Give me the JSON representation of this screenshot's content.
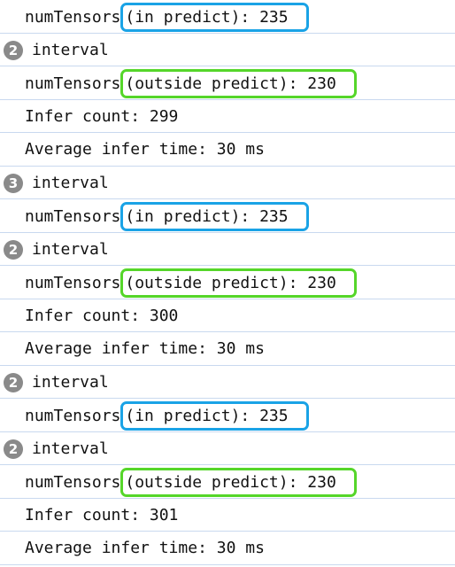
{
  "colors": {
    "in_predict_border": "#1aa3e6",
    "outside_predict_border": "#55d62a",
    "badge_bg": "#8a8a8a"
  },
  "lines": [
    {
      "kind": "tensor",
      "prefix": "numTensors",
      "boxed": "(in predict): 235",
      "highlight": "in_predict"
    },
    {
      "kind": "group",
      "count": "2",
      "text": "interval"
    },
    {
      "kind": "tensor",
      "prefix": "numTensors",
      "boxed": "(outside predict): 230",
      "highlight": "outside_predict"
    },
    {
      "kind": "text",
      "text": "Infer count: 299"
    },
    {
      "kind": "text",
      "text": "Average infer time: 30 ms"
    },
    {
      "kind": "group",
      "count": "3",
      "text": "interval"
    },
    {
      "kind": "tensor",
      "prefix": "numTensors",
      "boxed": "(in predict): 235",
      "highlight": "in_predict"
    },
    {
      "kind": "group",
      "count": "2",
      "text": "interval"
    },
    {
      "kind": "tensor",
      "prefix": "numTensors",
      "boxed": "(outside predict): 230",
      "highlight": "outside_predict"
    },
    {
      "kind": "text",
      "text": "Infer count: 300"
    },
    {
      "kind": "text",
      "text": "Average infer time: 30 ms"
    },
    {
      "kind": "group",
      "count": "2",
      "text": "interval"
    },
    {
      "kind": "tensor",
      "prefix": "numTensors",
      "boxed": "(in predict): 235",
      "highlight": "in_predict"
    },
    {
      "kind": "group",
      "count": "2",
      "text": "interval"
    },
    {
      "kind": "tensor",
      "prefix": "numTensors",
      "boxed": "(outside predict): 230",
      "highlight": "outside_predict"
    },
    {
      "kind": "text",
      "text": "Infer count: 301"
    },
    {
      "kind": "text",
      "text": "Average infer time: 30 ms"
    }
  ]
}
